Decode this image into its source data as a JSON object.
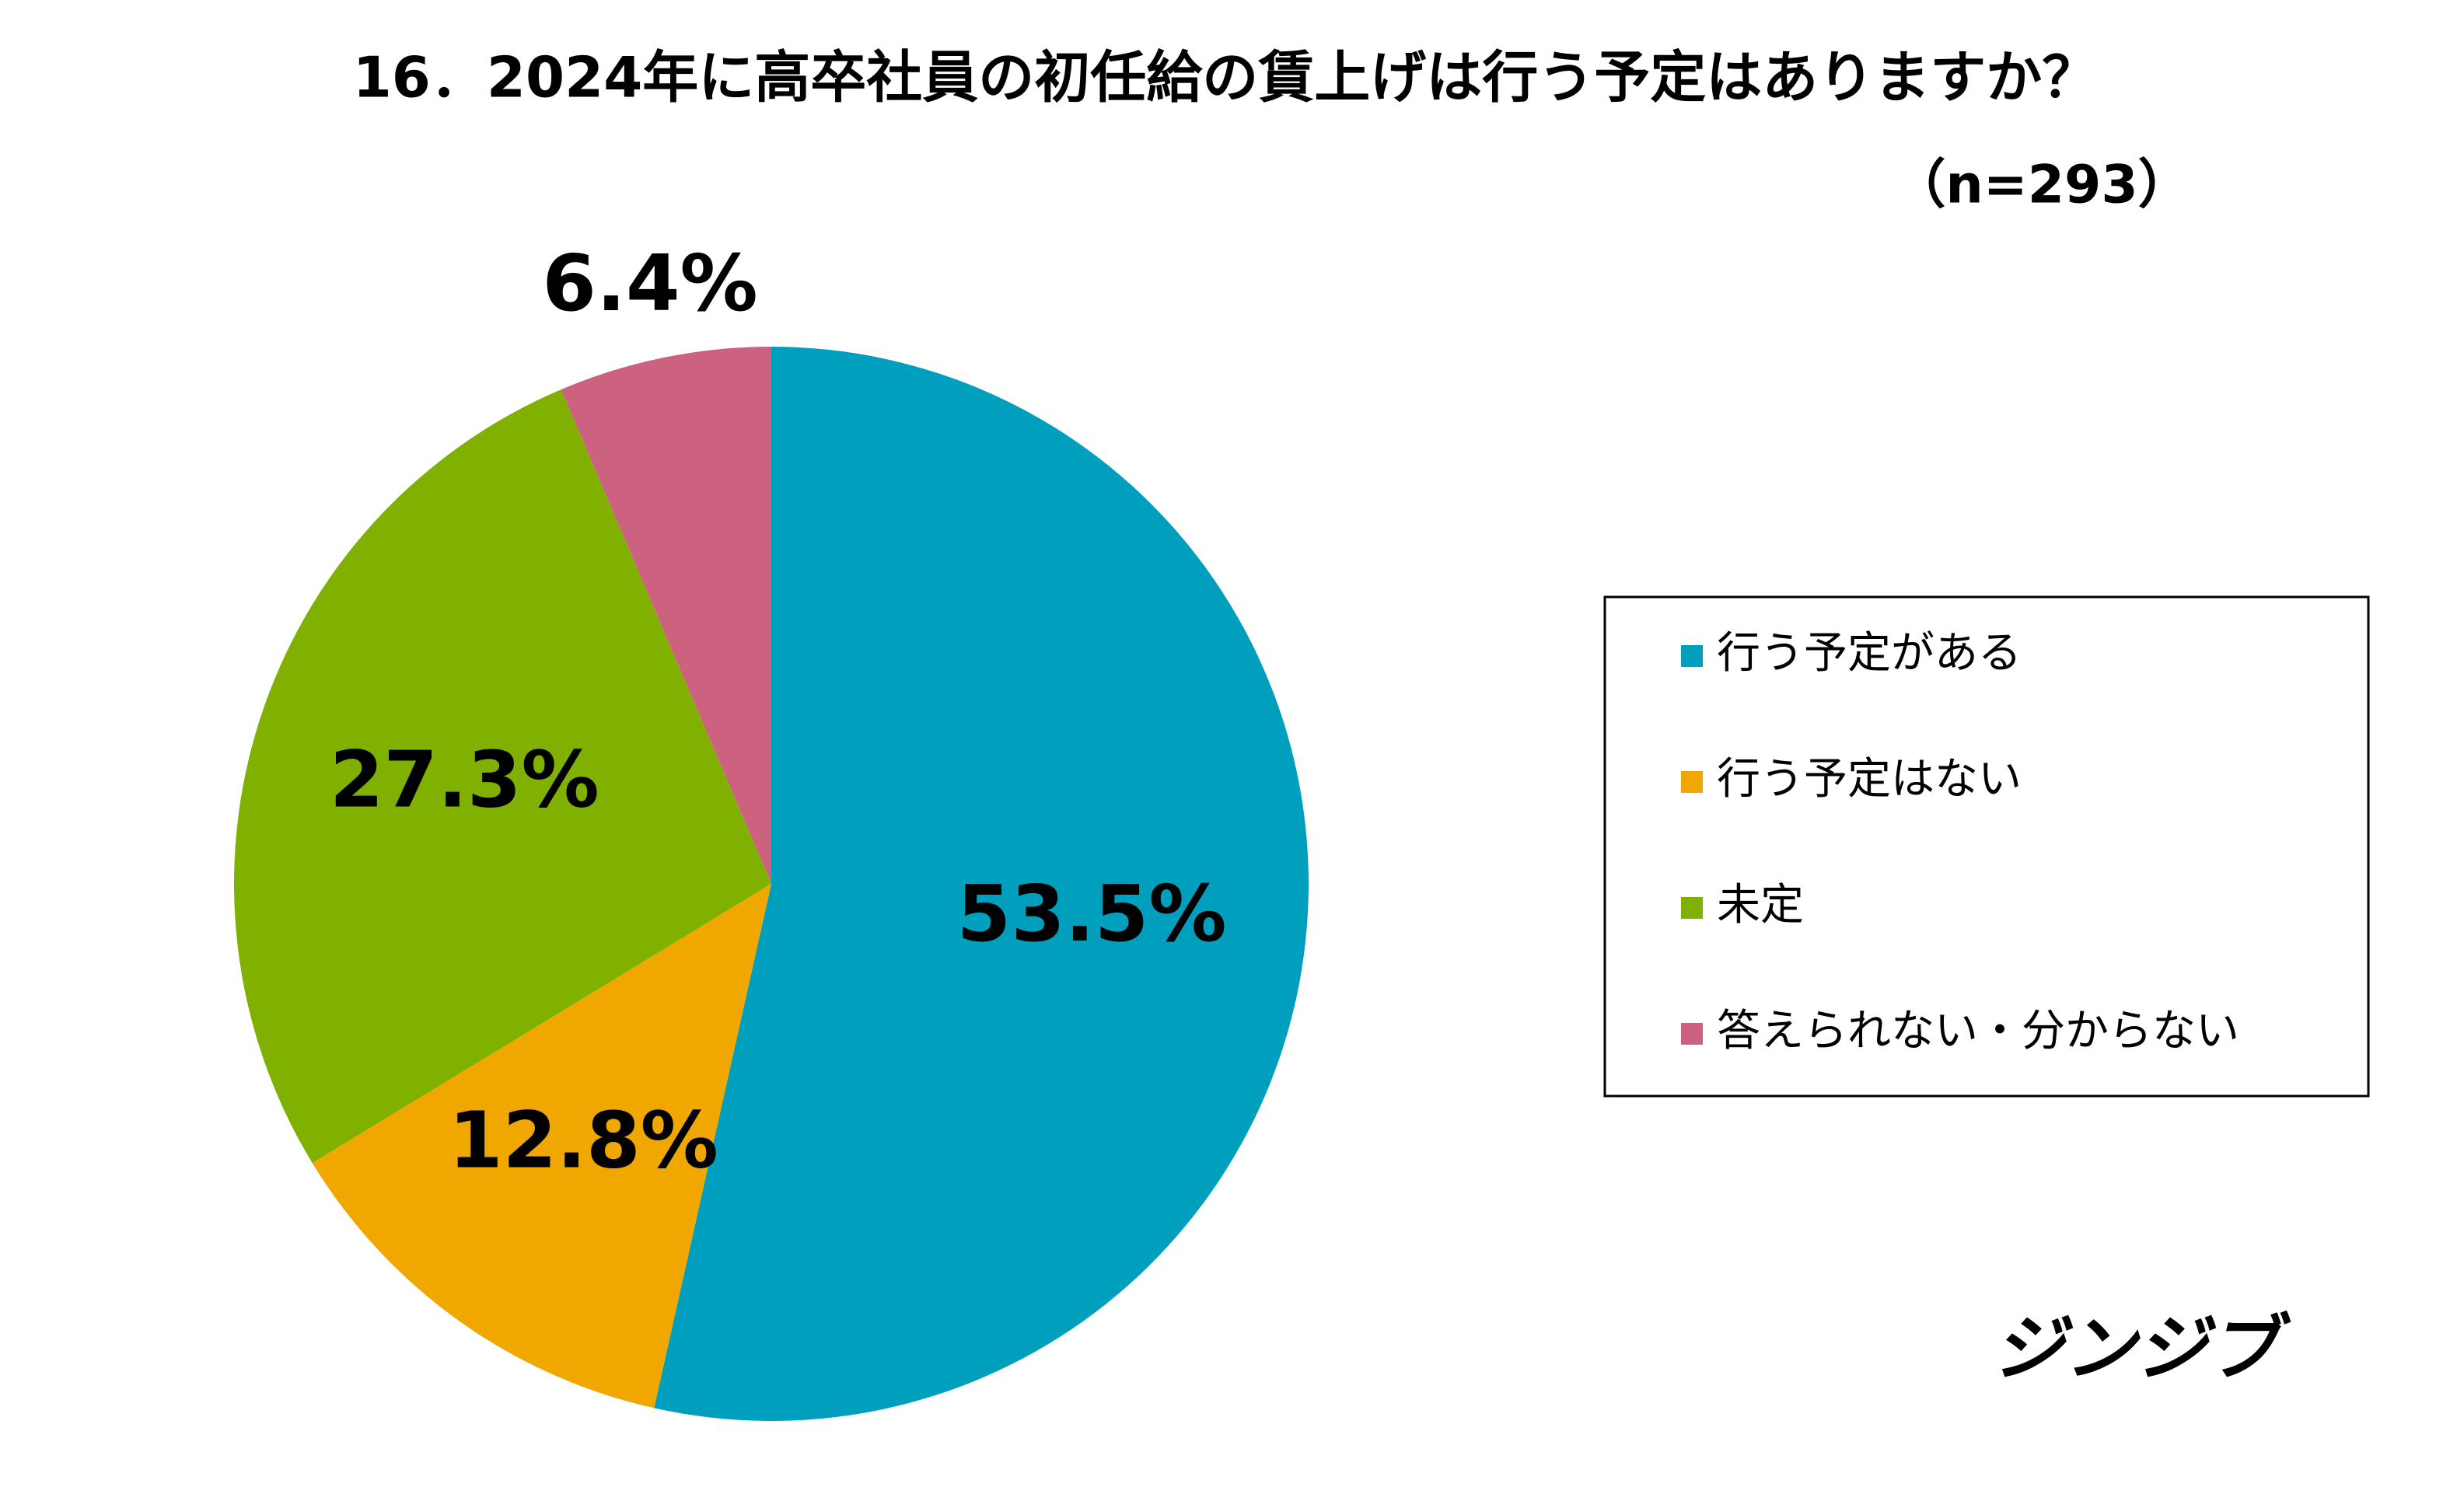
{
  "chart_data": {
    "type": "pie",
    "title": "16．2024年に高卒社員の初任給の賃上げは行う予定はありますか？",
    "subtitle": "（n=293）",
    "categories": [
      "行う予定がある",
      "行う予定はない",
      "未定",
      "答えられない・分からない"
    ],
    "values": [
      53.5,
      12.8,
      27.3,
      6.4
    ],
    "value_labels": [
      "53.5%",
      "12.8%",
      "27.3%",
      "6.4%"
    ],
    "colors": [
      "#009fbd",
      "#f0a800",
      "#80b000",
      "#cc6180"
    ],
    "legend": "right",
    "brand": "ジンジブ"
  }
}
